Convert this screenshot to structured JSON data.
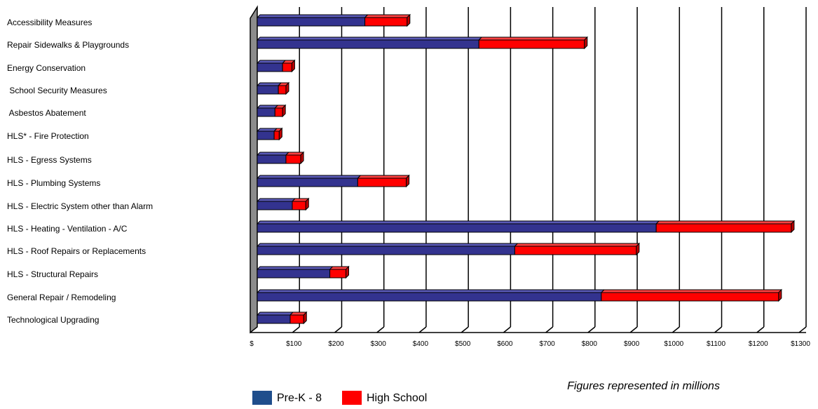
{
  "chart_data": {
    "type": "bar",
    "orientation": "horizontal",
    "stacked": true,
    "title": "",
    "xlabel": "",
    "ylabel": "",
    "categories": [
      "Accessibility Measures",
      "Repair Sidewalks & Playgrounds",
      "Energy Conservation",
      " School Security Measures",
      " Asbestos Abatement",
      "HLS* - Fire Protection",
      "HLS - Egress Systems",
      "HLS - Plumbing Systems",
      "HLS - Electric System other than Alarm",
      "HLS - Heating - Ventilation - A/C",
      "HLS - Roof Repairs or Replacements",
      "HLS - Structural Repairs",
      "General Repair / Remodeling",
      "Technological Upgrading"
    ],
    "series": [
      {
        "name": "Pre-K - 8",
        "color": "#33338f",
        "values": [
          255,
          525,
          60,
          50,
          42,
          40,
          68,
          238,
          83,
          945,
          610,
          172,
          815,
          78
        ]
      },
      {
        "name": "High School",
        "color": "#ff0000",
        "values": [
          100,
          250,
          22,
          18,
          18,
          12,
          35,
          115,
          32,
          320,
          288,
          38,
          420,
          32
        ]
      }
    ],
    "xlim": [
      0,
      1300
    ],
    "xticks": [
      0,
      100,
      200,
      300,
      400,
      500,
      600,
      700,
      800,
      900,
      1000,
      1100,
      1200,
      1300
    ],
    "xtick_labels": [
      "$",
      "$100",
      "$200",
      "$300",
      "$400",
      "$500",
      "$600",
      "$700",
      "$800",
      "$900",
      "$1000",
      "$1100",
      "$1200",
      "$1300"
    ],
    "grid": true,
    "legend": {
      "placement": "bottom",
      "swatch_colors": [
        "#1f4e8c",
        "#ff0000"
      ]
    },
    "annotation": "Figures represented in millions"
  }
}
